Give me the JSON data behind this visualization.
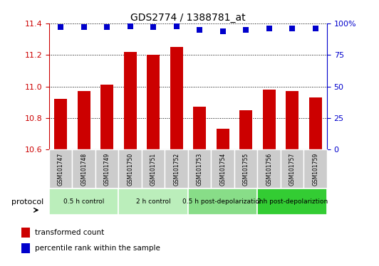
{
  "title": "GDS2774 / 1388781_at",
  "samples": [
    "GSM101747",
    "GSM101748",
    "GSM101749",
    "GSM101750",
    "GSM101751",
    "GSM101752",
    "GSM101753",
    "GSM101754",
    "GSM101755",
    "GSM101756",
    "GSM101757",
    "GSM101759"
  ],
  "transformed_count": [
    10.92,
    10.97,
    11.01,
    11.22,
    11.2,
    11.25,
    10.87,
    10.73,
    10.85,
    10.98,
    10.97,
    10.93
  ],
  "percentile_rank": [
    97,
    97,
    97,
    98,
    97,
    98,
    95,
    94,
    95,
    96,
    96,
    96
  ],
  "ylim_left": [
    10.6,
    11.4
  ],
  "ylim_right": [
    0,
    100
  ],
  "yticks_left": [
    10.6,
    10.8,
    11.0,
    11.2,
    11.4
  ],
  "yticks_right": [
    0,
    25,
    50,
    75,
    100
  ],
  "bar_color": "#CC0000",
  "dot_color": "#0000CC",
  "bg_color": "#FFFFFF",
  "grid_color": "#000000",
  "protocol_groups": [
    {
      "label": "0.5 h control",
      "start": 0,
      "end": 2,
      "color": "#BBEEBB"
    },
    {
      "label": "2 h control",
      "start": 3,
      "end": 5,
      "color": "#BBEEBB"
    },
    {
      "label": "0.5 h post-depolarization",
      "start": 6,
      "end": 8,
      "color": "#88DD88"
    },
    {
      "label": "2 h post-depolariztion",
      "start": 9,
      "end": 11,
      "color": "#33CC33"
    }
  ],
  "tick_label_color_left": "#CC0000",
  "tick_label_color_right": "#0000CC",
  "bar_width": 0.55,
  "dot_size": 40,
  "dot_marker": "s",
  "legend_red_label": "transformed count",
  "legend_blue_label": "percentile rank within the sample",
  "protocol_label": "protocol",
  "sample_bg": "#CCCCCC"
}
